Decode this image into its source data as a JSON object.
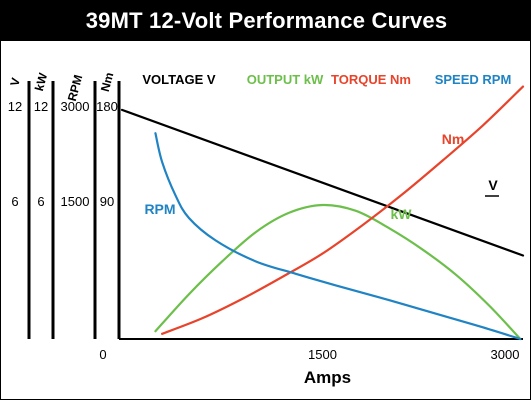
{
  "title": "39MT 12-Volt Performance Curves",
  "colors": {
    "voltage": "#000000",
    "output": "#6cbf4a",
    "torque": "#e8432b",
    "speed": "#1f83c4",
    "title_bg": "#000000",
    "title_fg": "#ffffff"
  },
  "chart_data": {
    "type": "line",
    "title": "39MT 12-Volt Performance Curves",
    "xlabel": "Amps",
    "xlim": [
      0,
      3000
    ],
    "x_ticks": [
      "0",
      "1500",
      "3000"
    ],
    "legend": [
      "VOLTAGE V",
      "OUTPUT kW",
      "TORQUE Nm",
      "SPEED RPM"
    ],
    "legend_position": "top",
    "grid": false,
    "y_axes": [
      {
        "unit": "V",
        "ticks": [
          "12",
          "6"
        ],
        "range": [
          0,
          12
        ]
      },
      {
        "unit": "kW",
        "ticks": [
          "12",
          "6"
        ],
        "range": [
          0,
          12
        ]
      },
      {
        "unit": "RPM",
        "ticks": [
          "3000",
          "1500"
        ],
        "range": [
          0,
          3000
        ]
      },
      {
        "unit": "Nm",
        "ticks": [
          "180",
          "90"
        ],
        "range": [
          0,
          180
        ]
      }
    ],
    "series": [
      {
        "name": "VOLTAGE V",
        "label": "V",
        "axis": "V",
        "color": "#000000",
        "x": [
          0,
          3000
        ],
        "y": [
          11.8,
          4.3
        ]
      },
      {
        "name": "OUTPUT kW",
        "label": "kW",
        "axis": "kW",
        "color": "#6cbf4a",
        "x": [
          250,
          500,
          750,
          1000,
          1250,
          1500,
          1750,
          2000,
          2250,
          2500,
          2750,
          2980
        ],
        "y": [
          0.4,
          2.3,
          4.0,
          5.5,
          6.5,
          6.9,
          6.6,
          5.7,
          4.6,
          3.3,
          1.7,
          0.0
        ]
      },
      {
        "name": "TORQUE Nm",
        "label": "Nm",
        "axis": "Nm",
        "color": "#e8432b",
        "x": [
          300,
          600,
          900,
          1200,
          1500,
          1800,
          2100,
          2400,
          2700,
          3000
        ],
        "y": [
          4,
          16,
          31,
          48,
          66,
          88,
          112,
          138,
          165,
          195
        ]
      },
      {
        "name": "SPEED RPM",
        "label": "RPM",
        "axis": "RPM",
        "color": "#1f83c4",
        "x": [
          250,
          300,
          400,
          500,
          700,
          1000,
          1300,
          1600,
          2000,
          2400,
          2700,
          2980
        ],
        "y": [
          2650,
          2280,
          1850,
          1560,
          1270,
          1000,
          840,
          690,
          500,
          300,
          150,
          0
        ]
      }
    ]
  }
}
